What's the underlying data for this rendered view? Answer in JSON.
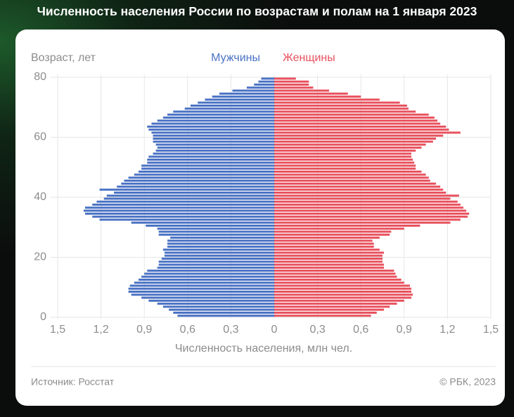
{
  "chart_data": {
    "type": "pyramid",
    "title": "Численность населения России по возрастам и полам на 1 января 2023",
    "y_label": "Возраст, лет",
    "x_label": "Численность населения, млн чел.",
    "source": "Источник: Росстат",
    "copyright": "© РБК, 2023",
    "xlim": [
      -1.5,
      1.5
    ],
    "xticks": [
      {
        "value": -1.5,
        "label": "1,5"
      },
      {
        "value": -1.2,
        "label": "1,2"
      },
      {
        "value": -0.9,
        "label": "0,9"
      },
      {
        "value": -0.6,
        "label": "0,6"
      },
      {
        "value": -0.3,
        "label": "0,3"
      },
      0,
      {
        "value": 0.3,
        "label": "0,3"
      },
      {
        "value": 0.6,
        "label": "0,6"
      },
      {
        "value": 0.9,
        "label": "0,9"
      },
      {
        "value": 1.2,
        "label": "1,2"
      },
      {
        "value": 1.5,
        "label": "1,5"
      }
    ],
    "ylim": [
      0,
      80
    ],
    "yticks": [
      0,
      20,
      40,
      60,
      80
    ],
    "grid": true,
    "y": [
      0,
      1,
      2,
      3,
      4,
      5,
      6,
      7,
      8,
      9,
      10,
      11,
      12,
      13,
      14,
      15,
      16,
      17,
      18,
      19,
      20,
      21,
      22,
      23,
      24,
      25,
      26,
      27,
      28,
      29,
      30,
      31,
      32,
      33,
      34,
      35,
      36,
      37,
      38,
      39,
      40,
      41,
      42,
      43,
      44,
      45,
      46,
      47,
      48,
      49,
      50,
      51,
      52,
      53,
      54,
      55,
      56,
      57,
      58,
      59,
      60,
      61,
      62,
      63,
      64,
      65,
      66,
      67,
      68,
      69,
      70,
      71,
      72,
      73,
      74,
      75,
      76,
      77,
      78,
      79
    ],
    "series": [
      {
        "name": "Мужчины",
        "color": "#4a72c4",
        "values": [
          0.67,
          0.7,
          0.73,
          0.77,
          0.81,
          0.87,
          0.92,
          0.99,
          1.01,
          1.01,
          1.0,
          0.97,
          0.94,
          0.92,
          0.9,
          0.88,
          0.81,
          0.8,
          0.8,
          0.78,
          0.76,
          0.76,
          0.77,
          0.74,
          0.74,
          0.74,
          0.72,
          0.8,
          0.8,
          0.81,
          0.89,
          0.99,
          1.21,
          1.26,
          1.31,
          1.32,
          1.31,
          1.26,
          1.23,
          1.18,
          1.16,
          1.11,
          1.21,
          1.09,
          1.06,
          1.04,
          1.01,
          0.97,
          0.94,
          0.92,
          0.92,
          0.88,
          0.88,
          0.87,
          0.84,
          0.82,
          0.81,
          0.82,
          0.84,
          0.84,
          0.84,
          0.85,
          0.87,
          0.88,
          0.85,
          0.81,
          0.77,
          0.74,
          0.7,
          0.62,
          0.58,
          0.53,
          0.48,
          0.43,
          0.38,
          0.29,
          0.19,
          0.14,
          0.11,
          0.09
        ]
      },
      {
        "name": "Женщины",
        "color": "#e8515e",
        "values": [
          0.67,
          0.71,
          0.76,
          0.8,
          0.85,
          0.9,
          0.95,
          0.96,
          0.95,
          0.95,
          0.94,
          0.9,
          0.88,
          0.85,
          0.84,
          0.83,
          0.76,
          0.76,
          0.75,
          0.75,
          0.75,
          0.76,
          0.73,
          0.69,
          0.69,
          0.68,
          0.73,
          0.8,
          0.81,
          0.9,
          1.01,
          1.22,
          1.29,
          1.34,
          1.35,
          1.33,
          1.31,
          1.29,
          1.27,
          1.22,
          1.28,
          1.19,
          1.17,
          1.15,
          1.12,
          1.08,
          1.07,
          1.05,
          1.02,
          0.98,
          0.98,
          0.97,
          0.96,
          0.95,
          0.95,
          0.98,
          1.02,
          1.05,
          1.1,
          1.12,
          1.17,
          1.29,
          1.21,
          1.19,
          1.15,
          1.13,
          1.11,
          1.07,
          0.98,
          0.93,
          0.92,
          0.87,
          0.73,
          0.6,
          0.51,
          0.38,
          0.27,
          0.24,
          0.24,
          0.15
        ]
      }
    ]
  }
}
